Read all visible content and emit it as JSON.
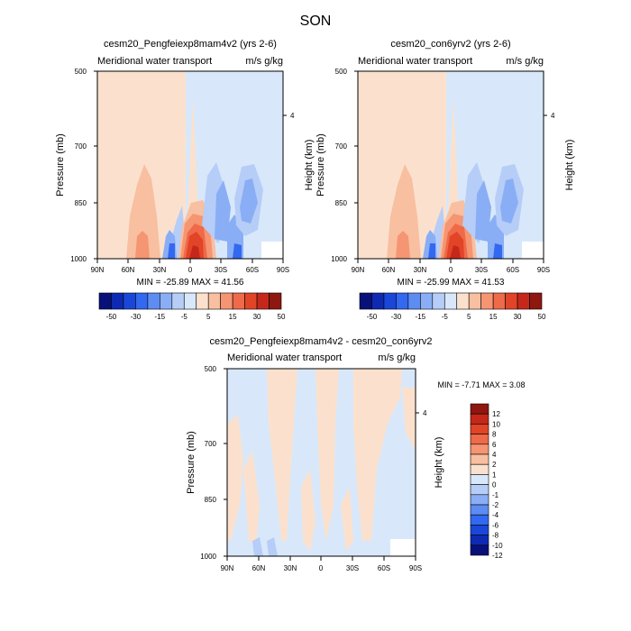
{
  "figure": {
    "title": "SON"
  },
  "colors": {
    "full": [
      "#08117a",
      "#0e2ab3",
      "#1a47d9",
      "#3368f0",
      "#5d8cf2",
      "#8aaef5",
      "#b6cdf8",
      "#d8e8fa",
      "#fbe1cd",
      "#f8bfa0",
      "#f59572",
      "#ef6a48",
      "#e24428",
      "#c5281a",
      "#8e1710"
    ],
    "diff": [
      "#08117a",
      "#0e2ab3",
      "#1a47d9",
      "#3368f0",
      "#5d8cf2",
      "#8aaef5",
      "#b6cdf8",
      "#d8e8fa",
      "#fbe1cd",
      "#f8bfa0",
      "#f59572",
      "#ef6a48",
      "#e24428",
      "#c5281a",
      "#8e1710"
    ]
  },
  "chart_data": [
    {
      "type": "contour",
      "title": "cesm20_Pengfeiexp8mam4v2 (yrs 2-6)",
      "left_label": "Meridional water transport",
      "right_label": "m/s g/kg",
      "ylabel": "Pressure (mb)",
      "ylabel_right": "Height (km)",
      "x_ticks": [
        "90N",
        "60N",
        "30N",
        "0",
        "30S",
        "60S",
        "90S"
      ],
      "y_ticks": [
        "500",
        "700",
        "850",
        "1000"
      ],
      "right_ticks": [
        "4"
      ],
      "stats": "MIN = -25.89  MAX = 41.56",
      "min": -25.89,
      "max": 41.56,
      "colorbar_labels": [
        "-50",
        "-30",
        "-15",
        "-5",
        "5",
        "15",
        "30",
        "50"
      ]
    },
    {
      "type": "contour",
      "title": "cesm20_con6yrv2 (yrs 2-6)",
      "left_label": "Meridional water transport",
      "right_label": "m/s g/kg",
      "ylabel": "Pressure (mb)",
      "ylabel_right": "Height (km)",
      "x_ticks": [
        "90N",
        "60N",
        "30N",
        "0",
        "30S",
        "60S",
        "90S"
      ],
      "y_ticks": [
        "500",
        "700",
        "850",
        "1000"
      ],
      "right_ticks": [
        "4"
      ],
      "stats": "MIN = -25.99  MAX = 41.53",
      "min": -25.99,
      "max": 41.53,
      "colorbar_labels": [
        "-50",
        "-30",
        "-15",
        "-5",
        "5",
        "15",
        "30",
        "50"
      ]
    },
    {
      "type": "contour",
      "title": "cesm20_Pengfeiexp8mam4v2 - cesm20_con6yrv2",
      "left_label": "Meridional water transport",
      "right_label": "m/s g/kg",
      "ylabel": "Pressure (mb)",
      "ylabel_right": "Height (km)",
      "x_ticks": [
        "90N",
        "60N",
        "30N",
        "0",
        "30S",
        "60S",
        "90S"
      ],
      "y_ticks": [
        "500",
        "700",
        "850",
        "1000"
      ],
      "right_ticks": [
        "4"
      ],
      "stats": "MIN = -7.71  MAX =  3.08",
      "min": -7.71,
      "max": 3.08,
      "colorbar_labels": [
        "12",
        "10",
        "8",
        "6",
        "4",
        "2",
        "1",
        "0",
        "-1",
        "-2",
        "-4",
        "-6",
        "-8",
        "-10",
        "-12"
      ]
    }
  ]
}
